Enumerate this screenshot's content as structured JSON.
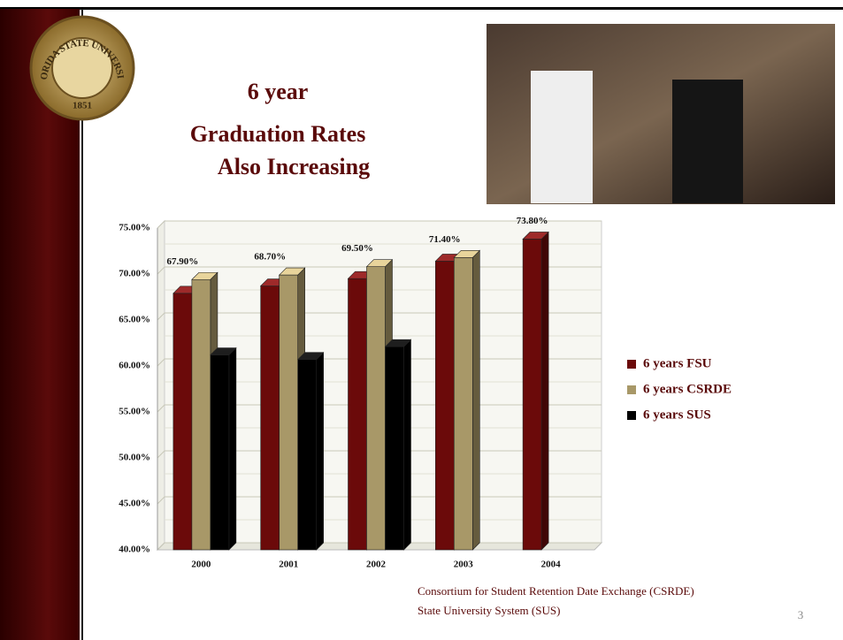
{
  "slide": {
    "title_lines": [
      "6 year",
      "Graduation Rates",
      "Also Increasing"
    ],
    "seal": {
      "name": "FLORIDA STATE UNIVERSITY",
      "year": "1851"
    },
    "footnotes": [
      "Consortium for Student Retention Date Exchange (CSRDE)",
      "State University System (SUS)"
    ],
    "page_number": "3"
  },
  "chart_data": {
    "type": "bar3d",
    "categories": [
      "2000",
      "2001",
      "2002",
      "2003",
      "2004"
    ],
    "series": [
      {
        "name": "6 years FSU",
        "color": "#6b0a0a",
        "values": [
          67.9,
          68.7,
          69.5,
          71.4,
          73.8
        ],
        "value_labels": [
          "67.90%",
          "68.70%",
          "69.50%",
          "71.40%",
          "73.80%"
        ]
      },
      {
        "name": "6 years CSRDE",
        "color": "#a89868",
        "values": [
          69.4,
          69.9,
          70.8,
          71.8,
          null
        ]
      },
      {
        "name": "6 years SUS",
        "color": "#000000",
        "values": [
          61.2,
          60.7,
          62.1,
          null,
          null
        ]
      }
    ],
    "ylim": [
      40,
      75
    ],
    "yticks": [
      {
        "value": 40,
        "label": "40.00%"
      },
      {
        "value": 45,
        "label": "45.00%"
      },
      {
        "value": 50,
        "label": "50.00%"
      },
      {
        "value": 55,
        "label": "55.00%"
      },
      {
        "value": 60,
        "label": "60.00%"
      },
      {
        "value": 65,
        "label": "65.00%"
      },
      {
        "value": 70,
        "label": "70.00%"
      },
      {
        "value": 75,
        "label": "75.00%"
      }
    ],
    "grid": true,
    "legend": "right"
  }
}
